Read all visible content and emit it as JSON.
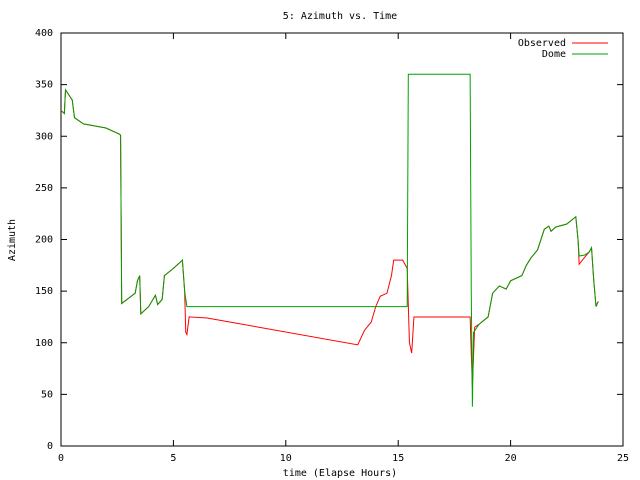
{
  "chart_data": {
    "type": "line",
    "title": "5: Azimuth vs. Time",
    "x_label": "time (Elapse Hours)",
    "y_label": "Azimuth",
    "xlim": [
      0,
      25
    ],
    "xticks": [
      0,
      5,
      10,
      15,
      20,
      25
    ],
    "ylim": [
      0,
      400
    ],
    "yticks": [
      0,
      50,
      100,
      150,
      200,
      250,
      300,
      350,
      400
    ],
    "grid": false,
    "legend": "top-right",
    "series": [
      {
        "name": "Observed",
        "color": "#ff0000",
        "x": [
          0,
          0.15,
          0.2,
          0.5,
          0.6,
          1,
          2,
          2.6,
          2.65,
          2.7,
          3,
          3.3,
          3.4,
          3.5,
          3.55,
          3.9,
          4.2,
          4.3,
          4.5,
          4.6,
          5,
          5.3,
          5.4,
          5.5,
          5.55,
          5.6,
          5.7,
          6.5,
          13.2,
          13.5,
          13.8,
          14,
          14.2,
          14.5,
          14.7,
          14.8,
          15.2,
          15.4,
          15.5,
          15.6,
          15.7,
          18.2,
          18.25,
          18.3,
          18.4,
          18.6,
          19,
          19.2,
          19.5,
          19.8,
          20,
          20.5,
          20.7,
          20.9,
          21.2,
          21.5,
          21.7,
          21.8,
          22,
          22.5,
          22.9,
          23,
          23.05,
          23.3,
          23.5,
          23.6,
          23.7,
          23.8,
          23.9
        ],
        "values": [
          325,
          322,
          345,
          335,
          318,
          312,
          308,
          302,
          301,
          138,
          143,
          148,
          160,
          165,
          128,
          135,
          146,
          137,
          142,
          165,
          172,
          178,
          180,
          150,
          110,
          108,
          125,
          124,
          98,
          112,
          120,
          135,
          145,
          148,
          165,
          180,
          180,
          172,
          100,
          90,
          125,
          125,
          90,
          58,
          115,
          118,
          125,
          148,
          155,
          152,
          160,
          165,
          175,
          182,
          190,
          210,
          213,
          208,
          212,
          215,
          222,
          200,
          176,
          183,
          188,
          192,
          160,
          135,
          140
        ]
      },
      {
        "name": "Dome",
        "color": "#00a000",
        "x": [
          0,
          0.15,
          0.2,
          0.5,
          0.6,
          1,
          2,
          2.6,
          2.65,
          2.7,
          3,
          3.3,
          3.4,
          3.5,
          3.55,
          3.9,
          4.2,
          4.3,
          4.5,
          4.6,
          5,
          5.3,
          5.4,
          5.5,
          5.6,
          15.4,
          15.45,
          18.2,
          18.25,
          18.3,
          18.35,
          18.6,
          19,
          19.2,
          19.5,
          19.8,
          20,
          20.5,
          20.7,
          20.9,
          21.2,
          21.5,
          21.7,
          21.8,
          22,
          22.5,
          22.9,
          23,
          23.05,
          23.3,
          23.5,
          23.6,
          23.7,
          23.8,
          23.9
        ],
        "values": [
          325,
          322,
          345,
          335,
          318,
          312,
          308,
          302,
          301,
          138,
          143,
          148,
          160,
          165,
          128,
          135,
          146,
          137,
          142,
          165,
          172,
          178,
          180,
          150,
          135,
          135,
          360,
          360,
          150,
          38,
          110,
          118,
          125,
          148,
          155,
          152,
          160,
          165,
          175,
          182,
          190,
          210,
          213,
          208,
          212,
          215,
          222,
          200,
          184,
          185,
          188,
          192,
          160,
          135,
          140
        ]
      }
    ]
  }
}
